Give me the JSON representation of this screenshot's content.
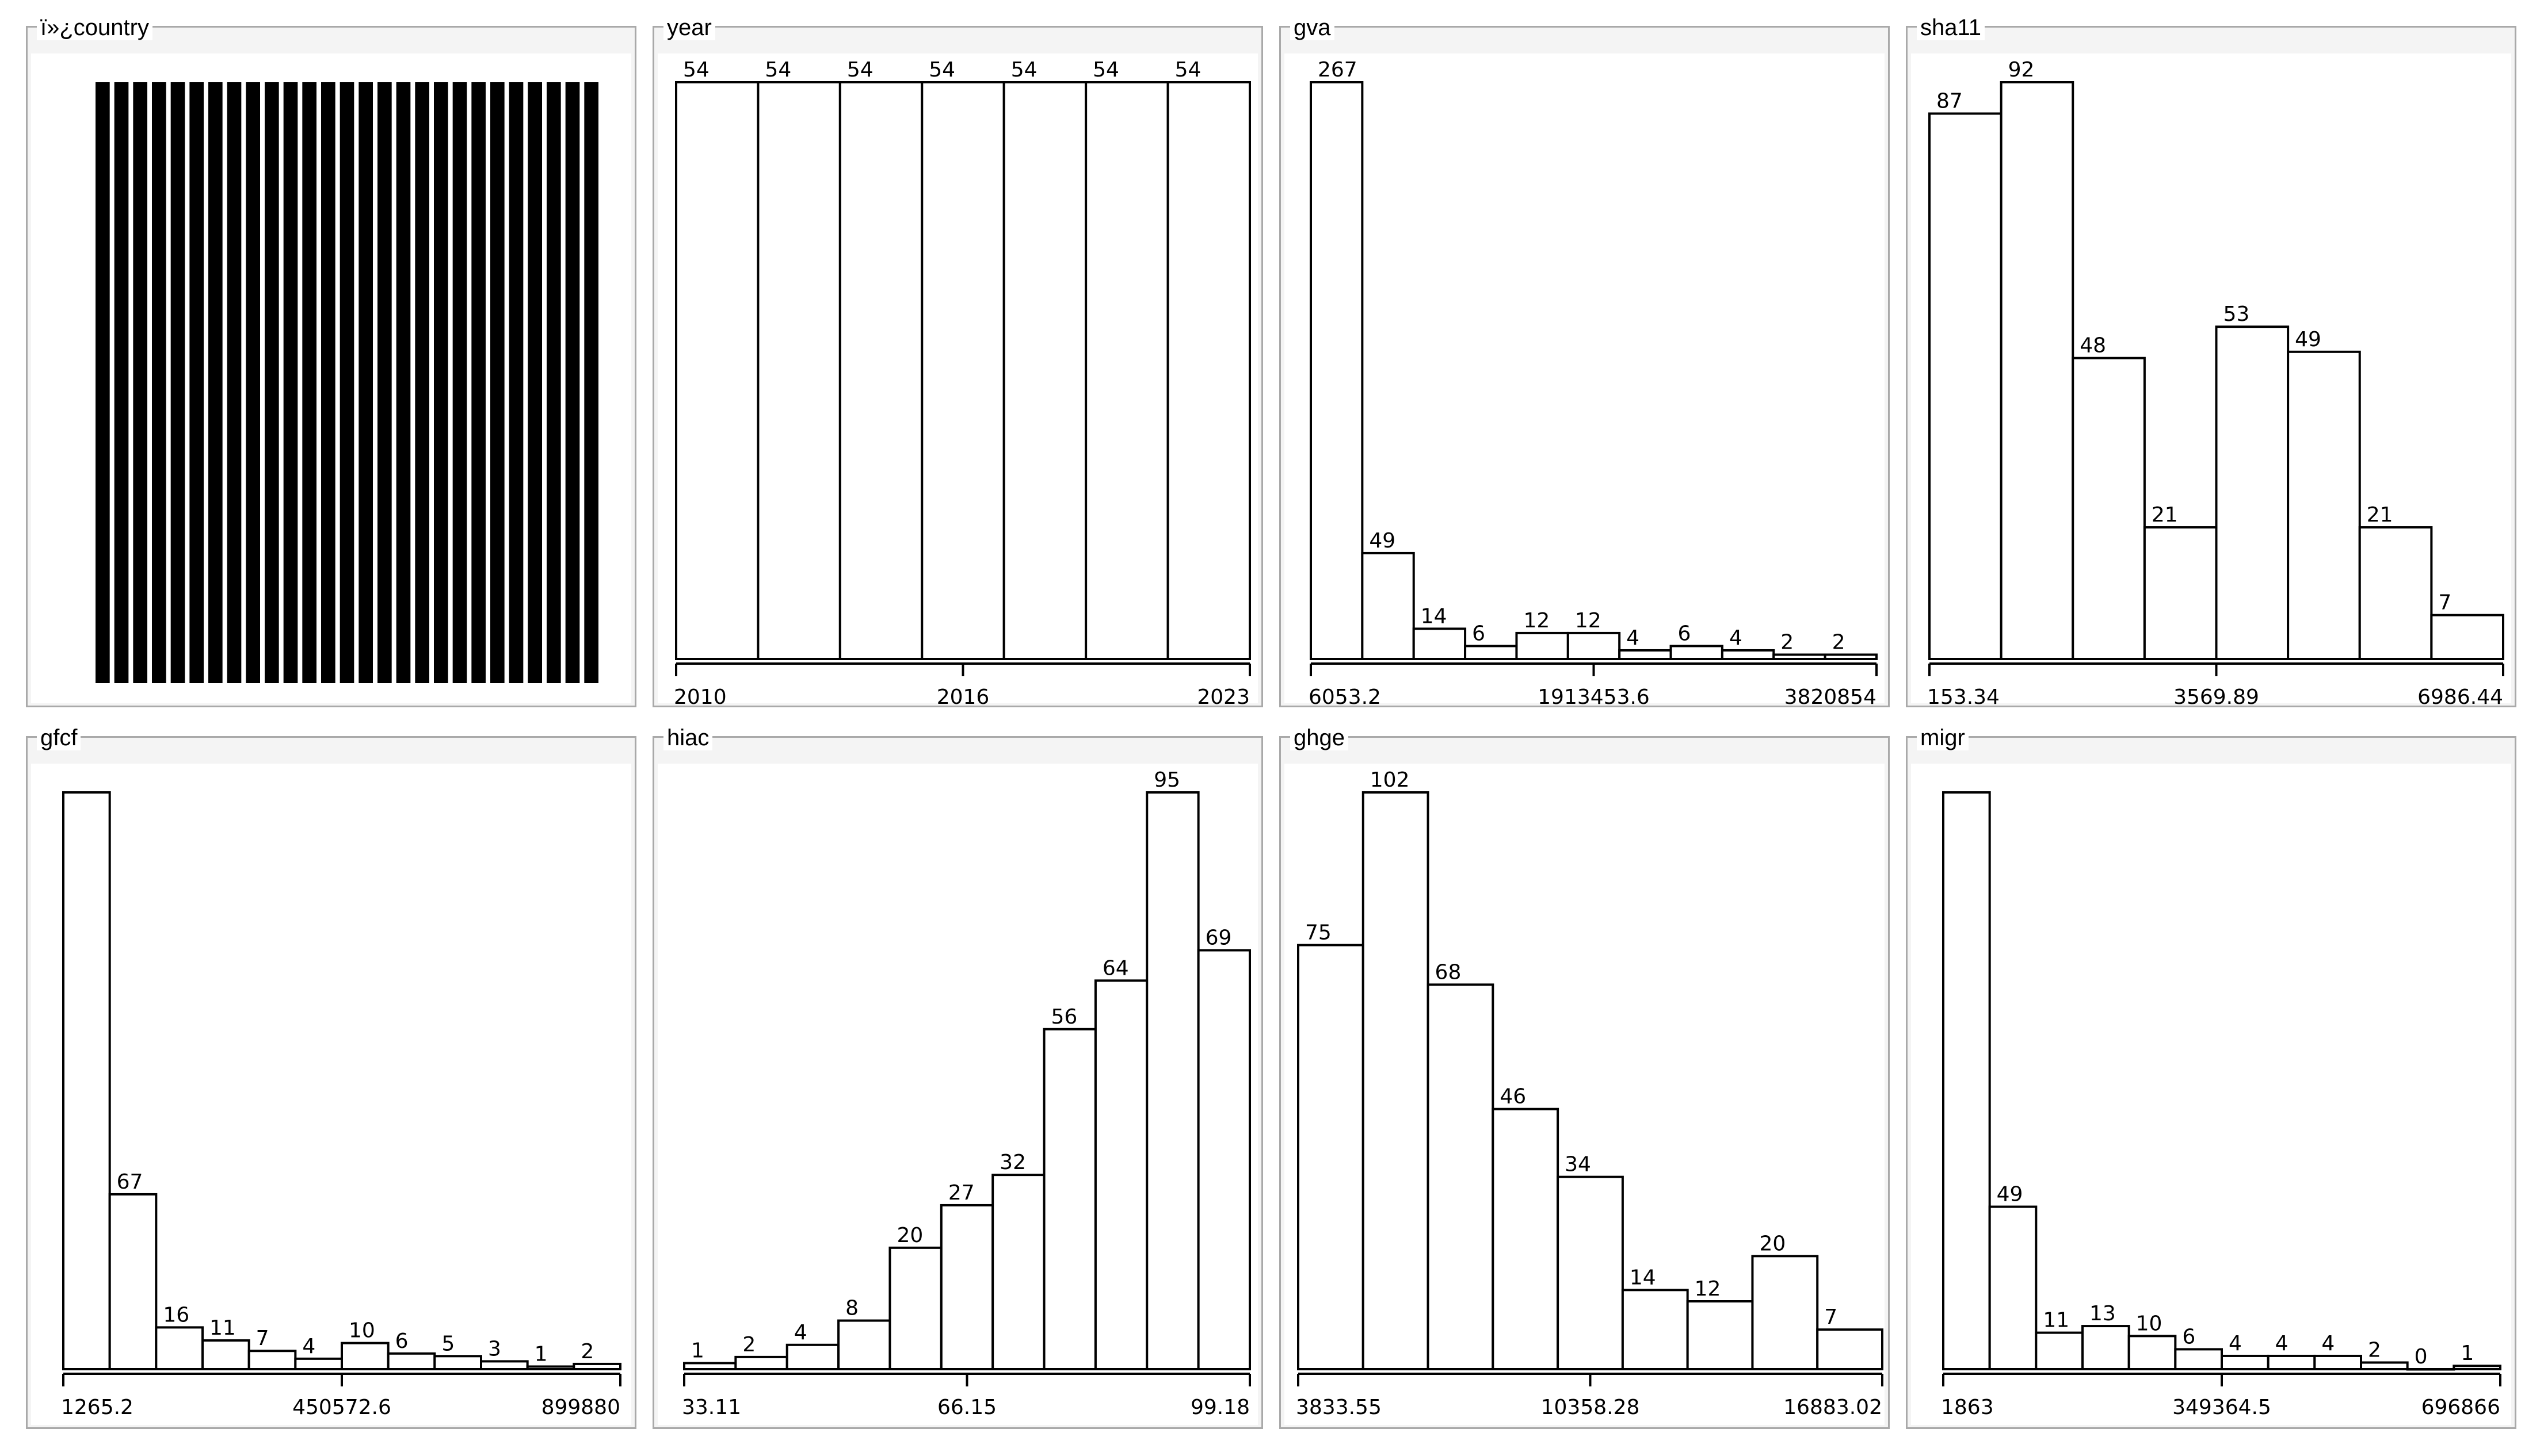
{
  "chart_data": [
    {
      "type": "bar",
      "title": "ï»¿country",
      "style": "black-bars",
      "bar_count": 27,
      "values": [
        1,
        1,
        1,
        1,
        1,
        1,
        1,
        1,
        1,
        1,
        1,
        1,
        1,
        1,
        1,
        1,
        1,
        1,
        1,
        1,
        1,
        1,
        1,
        1,
        1,
        1,
        1
      ],
      "show_counts": false,
      "show_axis": false
    },
    {
      "type": "bar",
      "title": "year",
      "values": [
        54,
        54,
        54,
        54,
        54,
        54,
        54
      ],
      "ticks": [
        "2010",
        "2016",
        "2023"
      ],
      "show_counts": true,
      "show_axis": true
    },
    {
      "type": "bar",
      "title": "gva",
      "values": [
        267,
        49,
        14,
        6,
        12,
        12,
        4,
        6,
        4,
        2,
        2
      ],
      "ticks": [
        "6053.2",
        "1913453.6",
        "3820854"
      ],
      "show_counts": true,
      "show_axis": true
    },
    {
      "type": "bar",
      "title": "sha11",
      "values": [
        87,
        92,
        48,
        21,
        53,
        49,
        21,
        7
      ],
      "ticks": [
        "153.34",
        "3569.89",
        "6986.44"
      ],
      "show_counts": true,
      "show_axis": true
    },
    {
      "type": "bar",
      "title": "gfcf",
      "values": [
        null,
        67,
        16,
        11,
        7,
        4,
        10,
        6,
        5,
        3,
        1,
        2
      ],
      "visual_max": 221,
      "first_bar_full": true,
      "ticks": [
        "1265.2",
        "450572.6",
        "899880"
      ],
      "show_counts": true,
      "show_axis": true
    },
    {
      "type": "bar",
      "title": "hiac",
      "values": [
        1,
        2,
        4,
        8,
        20,
        27,
        32,
        56,
        64,
        95,
        69
      ],
      "ticks": [
        "33.11",
        "66.15",
        "99.18"
      ],
      "show_counts": true,
      "show_axis": true
    },
    {
      "type": "bar",
      "title": "ghge",
      "values": [
        75,
        102,
        68,
        46,
        34,
        14,
        12,
        20,
        7
      ],
      "ticks": [
        "3833.55",
        "10358.28",
        "16883.02"
      ],
      "show_counts": true,
      "show_axis": true
    },
    {
      "type": "bar",
      "title": "migr",
      "values": [
        null,
        49,
        11,
        13,
        10,
        6,
        4,
        4,
        4,
        2,
        0,
        1
      ],
      "visual_max": 174,
      "first_bar_full": true,
      "ticks": [
        "1863",
        "349364.5",
        "696866"
      ],
      "show_counts": true,
      "show_axis": true
    }
  ]
}
